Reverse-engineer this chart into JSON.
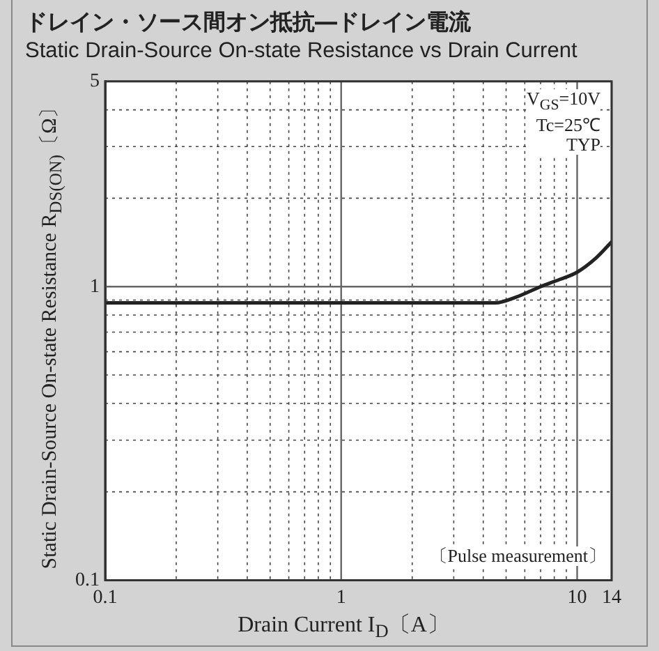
{
  "chart_data": {
    "type": "line",
    "title": "ドレイン・ソース間オン抵抗―ドレイン電流",
    "subtitle": "Static Drain-Source On-state Resistance vs Drain Current",
    "xlabel": "Drain Current  I$_{D}$〔A〕",
    "ylabel": "Static Drain-Source On-state Resistance  R$_{DS(ON)}$〔Ω〕",
    "annotations": [
      "V$_{GS}$=10V",
      "Tc=25℃",
      "TYP",
      "〔Pulse measurement〕"
    ],
    "x": [
      0.1,
      1,
      4.5,
      5.5,
      7,
      8.5,
      10,
      12,
      14
    ],
    "series": [
      {
        "color": "#222222",
        "values": [
          0.88,
          0.88,
          0.88,
          0.92,
          1.0,
          1.06,
          1.12,
          1.25,
          1.42
        ]
      }
    ],
    "log": "xy",
    "xlim": [
      0.1,
      14
    ],
    "ylim": [
      0.1,
      5
    ],
    "xticks": [
      0.1,
      {
        "value": 0.2,
        "label": null
      },
      {
        "value": 0.3,
        "label": null
      },
      {
        "value": 0.4,
        "label": null
      },
      {
        "value": 0.5,
        "label": null
      },
      {
        "value": 0.6,
        "label": null
      },
      {
        "value": 0.7,
        "label": null
      },
      {
        "value": 0.8,
        "label": null
      },
      {
        "value": 0.9,
        "label": null
      },
      1,
      {
        "value": 2,
        "label": null
      },
      {
        "value": 3,
        "label": null
      },
      {
        "value": 4,
        "label": null
      },
      {
        "value": 5,
        "label": null
      },
      {
        "value": 6,
        "label": null
      },
      {
        "value": 7,
        "label": null
      },
      {
        "value": 8,
        "label": null
      },
      {
        "value": 9,
        "label": null
      },
      10,
      14
    ],
    "yticks": [
      0.1,
      {
        "value": 0.2,
        "label": null
      },
      {
        "value": 0.3,
        "label": null
      },
      {
        "value": 0.4,
        "label": null
      },
      {
        "value": 0.5,
        "label": null
      },
      {
        "value": 0.6,
        "label": null
      },
      {
        "value": 0.7,
        "label": null
      },
      {
        "value": 0.8,
        "label": null
      },
      {
        "value": 0.9,
        "label": null
      },
      1,
      {
        "value": 2,
        "label": null
      },
      {
        "value": 3,
        "label": null
      },
      {
        "value": 4,
        "label": null
      },
      5
    ],
    "grid": true,
    "legend": false,
    "marker": "none",
    "line_style": "solid"
  }
}
